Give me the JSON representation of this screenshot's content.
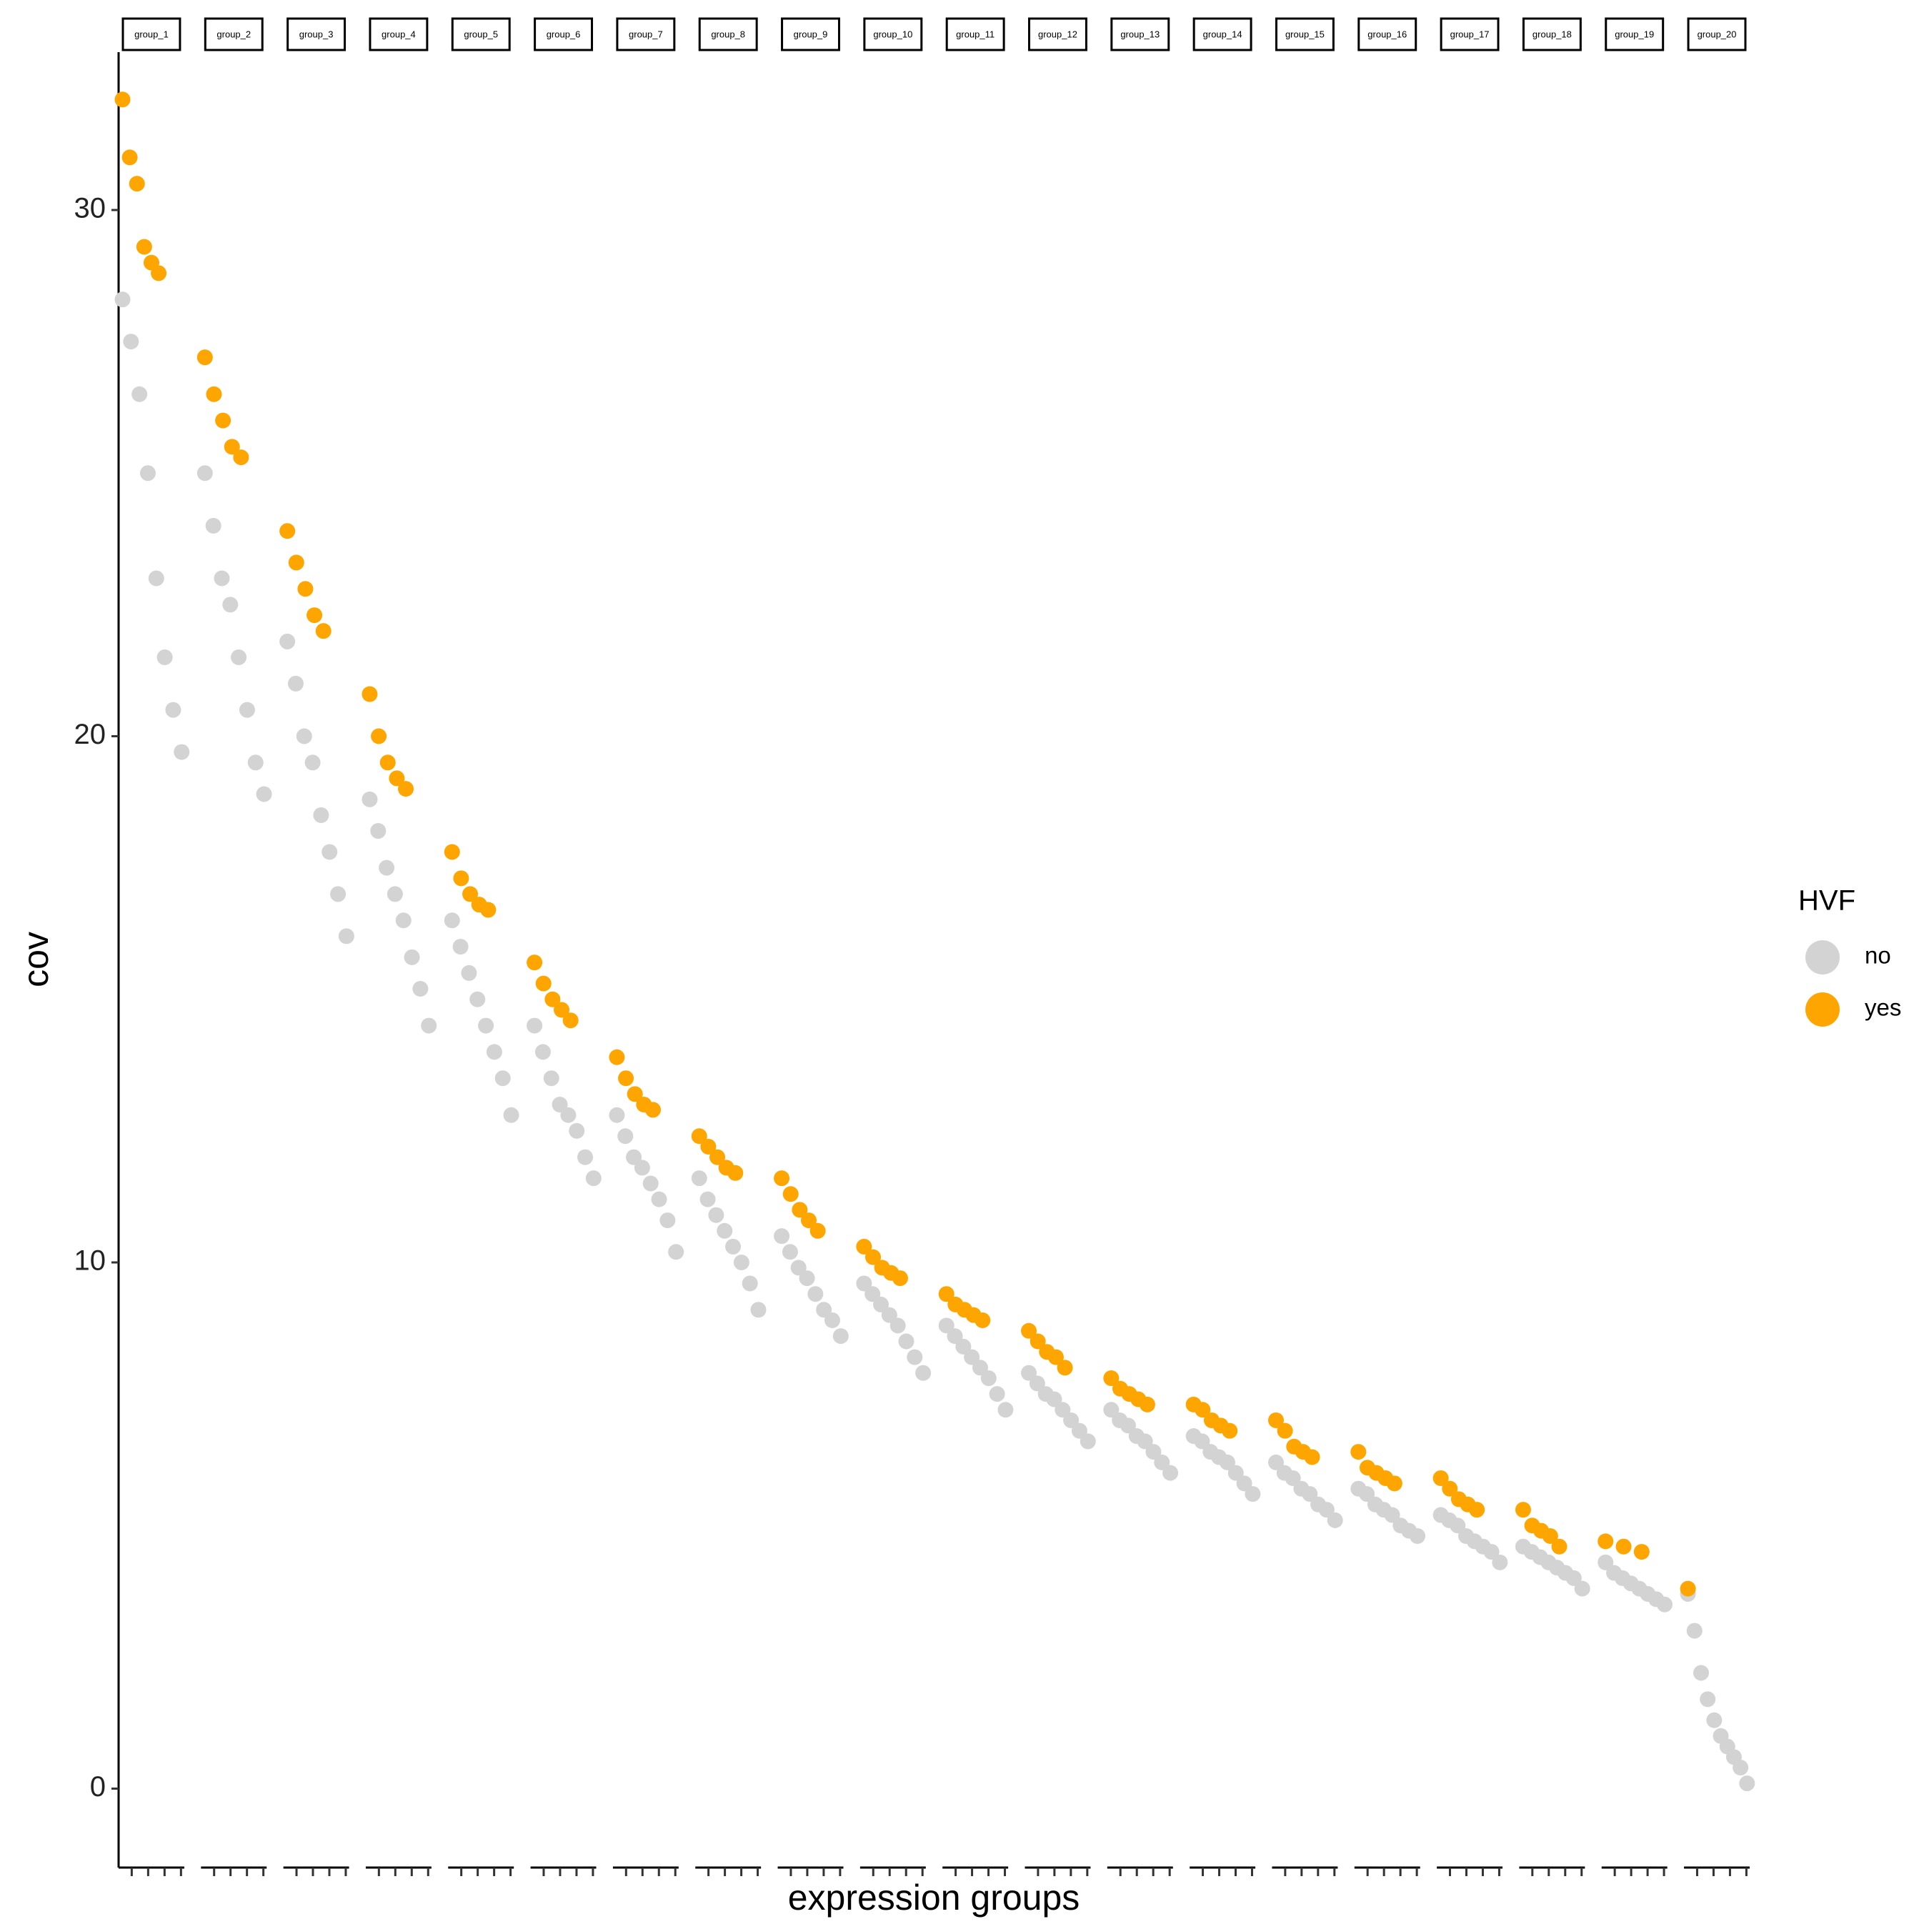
{
  "chart_data": {
    "type": "scatter",
    "y_label": "cov",
    "x_label": "expression groups",
    "legend_title": "HVF",
    "legend_position": "right",
    "ylim": [
      -1.5,
      33
    ],
    "yticks": [
      0,
      10,
      20,
      30
    ],
    "grid": false,
    "series": [
      {
        "name": "no",
        "color": "#d3d3d3"
      },
      {
        "name": "yes",
        "color": "#ffa500"
      }
    ],
    "facets": [
      {
        "label": "group_1",
        "values": [
          [
            28.3,
            27.5,
            26.5,
            25,
            23,
            21.5,
            20.5,
            19.7
          ],
          [
            32.1,
            31,
            30.5,
            29.3,
            29,
            28.8
          ]
        ]
      },
      {
        "label": "group_2",
        "values": [
          [
            25,
            24,
            23,
            22.5,
            21.5,
            20.5,
            19.5,
            18.9
          ],
          [
            27.2,
            26.5,
            26,
            25.5,
            25.3
          ]
        ]
      },
      {
        "label": "group_3",
        "values": [
          [
            21.8,
            21,
            20,
            19.5,
            18.5,
            17.8,
            17,
            16.2
          ],
          [
            23.9,
            23.3,
            22.8,
            22.3,
            22
          ]
        ]
      },
      {
        "label": "group_4",
        "values": [
          [
            18.8,
            18.2,
            17.5,
            17,
            16.5,
            15.8,
            15.2,
            14.5
          ],
          [
            20.8,
            20,
            19.5,
            19.2,
            19
          ]
        ]
      },
      {
        "label": "group_5",
        "values": [
          [
            16.5,
            16,
            15.5,
            15,
            14.5,
            14,
            13.5,
            12.8
          ],
          [
            17.8,
            17.3,
            17,
            16.8,
            16.7
          ]
        ]
      },
      {
        "label": "group_6",
        "values": [
          [
            14.5,
            14,
            13.5,
            13,
            12.8,
            12.5,
            12,
            11.6
          ],
          [
            15.7,
            15.3,
            15,
            14.8,
            14.6
          ]
        ]
      },
      {
        "label": "group_7",
        "values": [
          [
            12.8,
            12.4,
            12,
            11.8,
            11.5,
            11.2,
            10.8,
            10.2
          ],
          [
            13.9,
            13.5,
            13.2,
            13,
            12.9
          ]
        ]
      },
      {
        "label": "group_8",
        "values": [
          [
            11.6,
            11.2,
            10.9,
            10.6,
            10.3,
            10,
            9.6,
            9.1
          ],
          [
            12.4,
            12.2,
            12,
            11.8,
            11.7
          ]
        ]
      },
      {
        "label": "group_9",
        "values": [
          [
            10.5,
            10.2,
            9.9,
            9.7,
            9.4,
            9.1,
            8.9,
            8.6
          ],
          [
            11.6,
            11.3,
            11,
            10.8,
            10.6
          ]
        ]
      },
      {
        "label": "group_10",
        "values": [
          [
            9.6,
            9.4,
            9.2,
            9,
            8.8,
            8.5,
            8.2,
            7.9
          ],
          [
            10.3,
            10.1,
            9.9,
            9.8,
            9.7
          ]
        ]
      },
      {
        "label": "group_11",
        "values": [
          [
            8.8,
            8.6,
            8.4,
            8.2,
            8,
            7.8,
            7.5,
            7.2
          ],
          [
            9.4,
            9.2,
            9.1,
            9,
            8.9
          ]
        ]
      },
      {
        "label": "group_12",
        "values": [
          [
            7.9,
            7.7,
            7.5,
            7.4,
            7.2,
            7,
            6.8,
            6.6
          ],
          [
            8.7,
            8.5,
            8.3,
            8.2,
            8
          ]
        ]
      },
      {
        "label": "group_13",
        "values": [
          [
            7.2,
            7,
            6.9,
            6.7,
            6.6,
            6.4,
            6.2,
            6
          ],
          [
            7.8,
            7.6,
            7.5,
            7.4,
            7.3
          ]
        ]
      },
      {
        "label": "group_14",
        "values": [
          [
            6.7,
            6.6,
            6.4,
            6.3,
            6.2,
            6,
            5.8,
            5.6
          ],
          [
            7.3,
            7.2,
            7,
            6.9,
            6.8
          ]
        ]
      },
      {
        "label": "group_15",
        "values": [
          [
            6.2,
            6,
            5.9,
            5.7,
            5.6,
            5.4,
            5.3,
            5.1
          ],
          [
            7,
            6.8,
            6.5,
            6.4,
            6.3
          ]
        ]
      },
      {
        "label": "group_16",
        "values": [
          [
            5.7,
            5.6,
            5.4,
            5.3,
            5.2,
            5,
            4.9,
            4.8
          ],
          [
            6.4,
            6.1,
            6,
            5.9,
            5.8
          ]
        ]
      },
      {
        "label": "group_17",
        "values": [
          [
            5.2,
            5.1,
            5,
            4.8,
            4.7,
            4.6,
            4.5,
            4.3
          ],
          [
            5.9,
            5.7,
            5.5,
            5.4,
            5.3
          ]
        ]
      },
      {
        "label": "group_18",
        "values": [
          [
            4.6,
            4.5,
            4.4,
            4.3,
            4.2,
            4.1,
            4,
            3.8
          ],
          [
            5.3,
            5,
            4.9,
            4.8,
            4.6
          ]
        ]
      },
      {
        "label": "group_19",
        "values": [
          [
            4.3,
            4.1,
            4,
            3.9,
            3.8,
            3.7,
            3.6,
            3.5
          ],
          [
            4.7,
            4.6,
            4.5
          ]
        ]
      },
      {
        "label": "group_20",
        "values": [
          [
            3.7,
            3,
            2.2,
            1.7,
            1.3,
            1,
            0.8,
            0.6,
            0.4,
            0.1
          ],
          [
            3.8
          ]
        ]
      }
    ]
  }
}
